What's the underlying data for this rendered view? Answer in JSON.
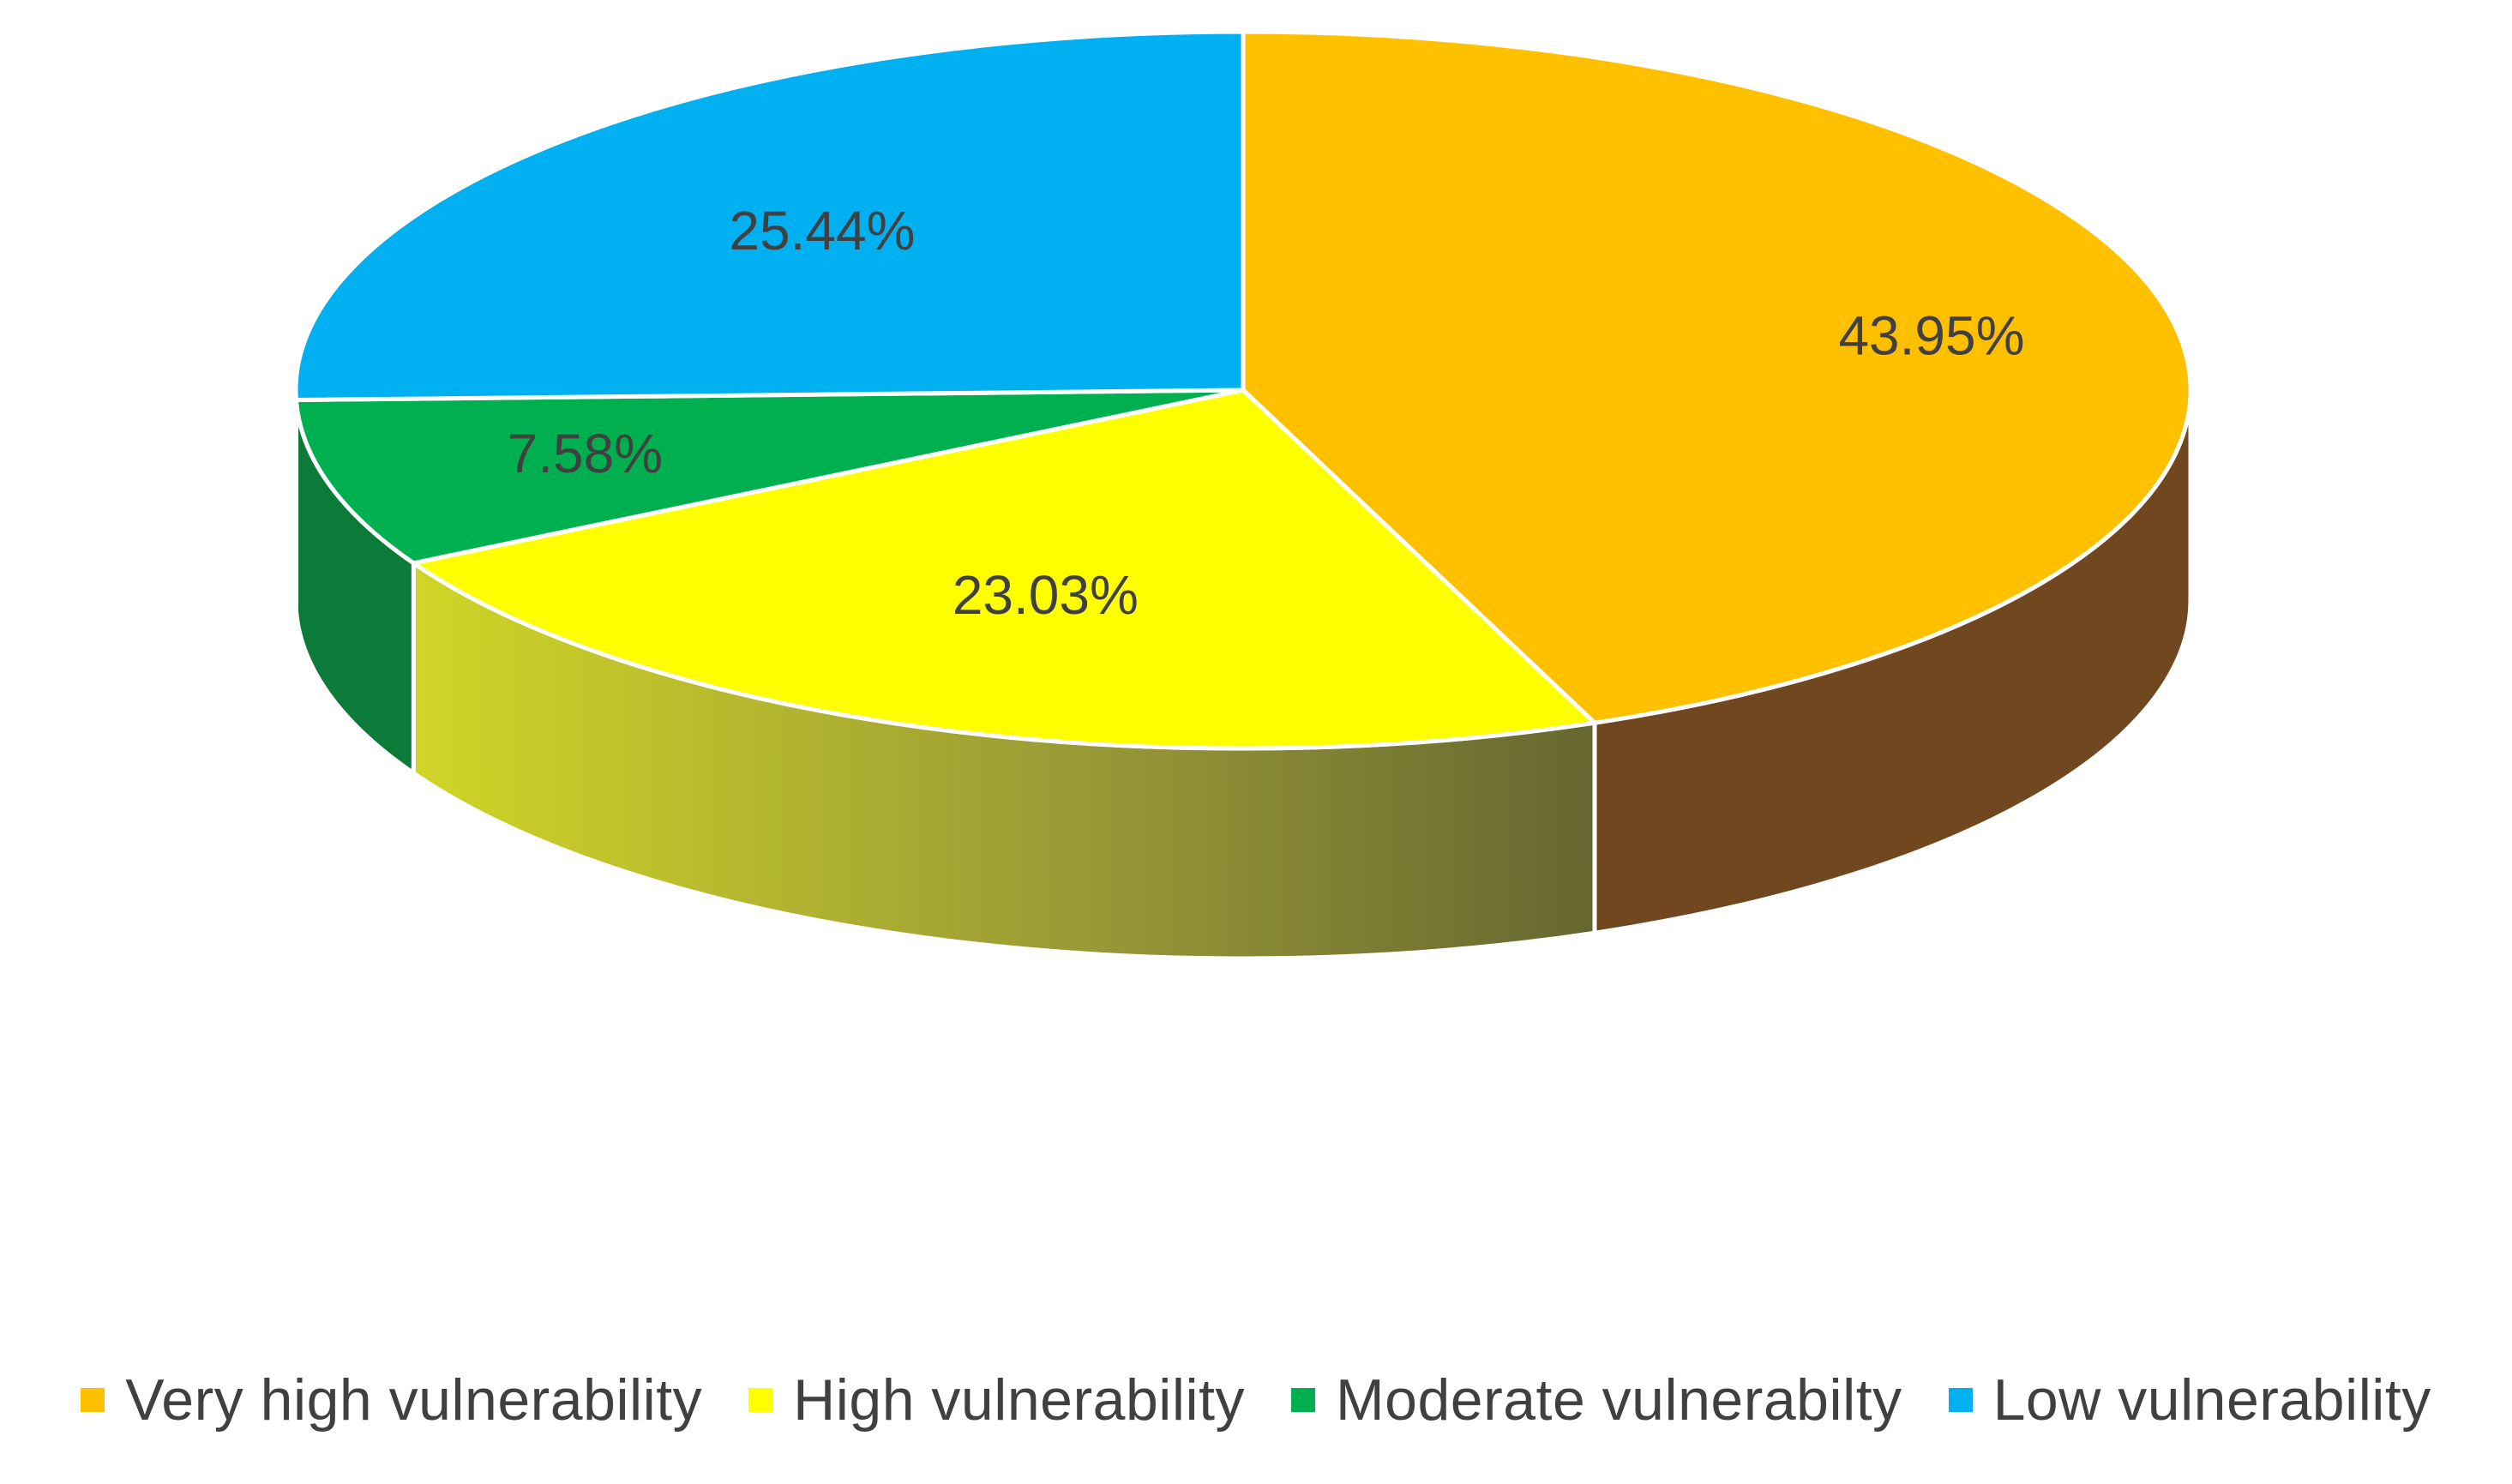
{
  "chart_data": {
    "type": "pie",
    "style": "3d",
    "title": "",
    "categories": [
      "Very high vulnerability",
      "High vulnerability",
      "Moderate vulnerabilty",
      "Low vulnerability"
    ],
    "values": [
      43.95,
      23.03,
      7.58,
      25.44
    ],
    "value_labels": [
      "43.95%",
      "23.03%",
      "7.58%",
      "25.44%"
    ],
    "colors": [
      "#FFC000",
      "#FFFF00",
      "#00B050",
      "#00B0F0"
    ],
    "side_colors": [
      "#70471f",
      "#6b6a2c",
      "#0c7a38",
      "#0a7fb0"
    ],
    "legend_position": "bottom"
  }
}
